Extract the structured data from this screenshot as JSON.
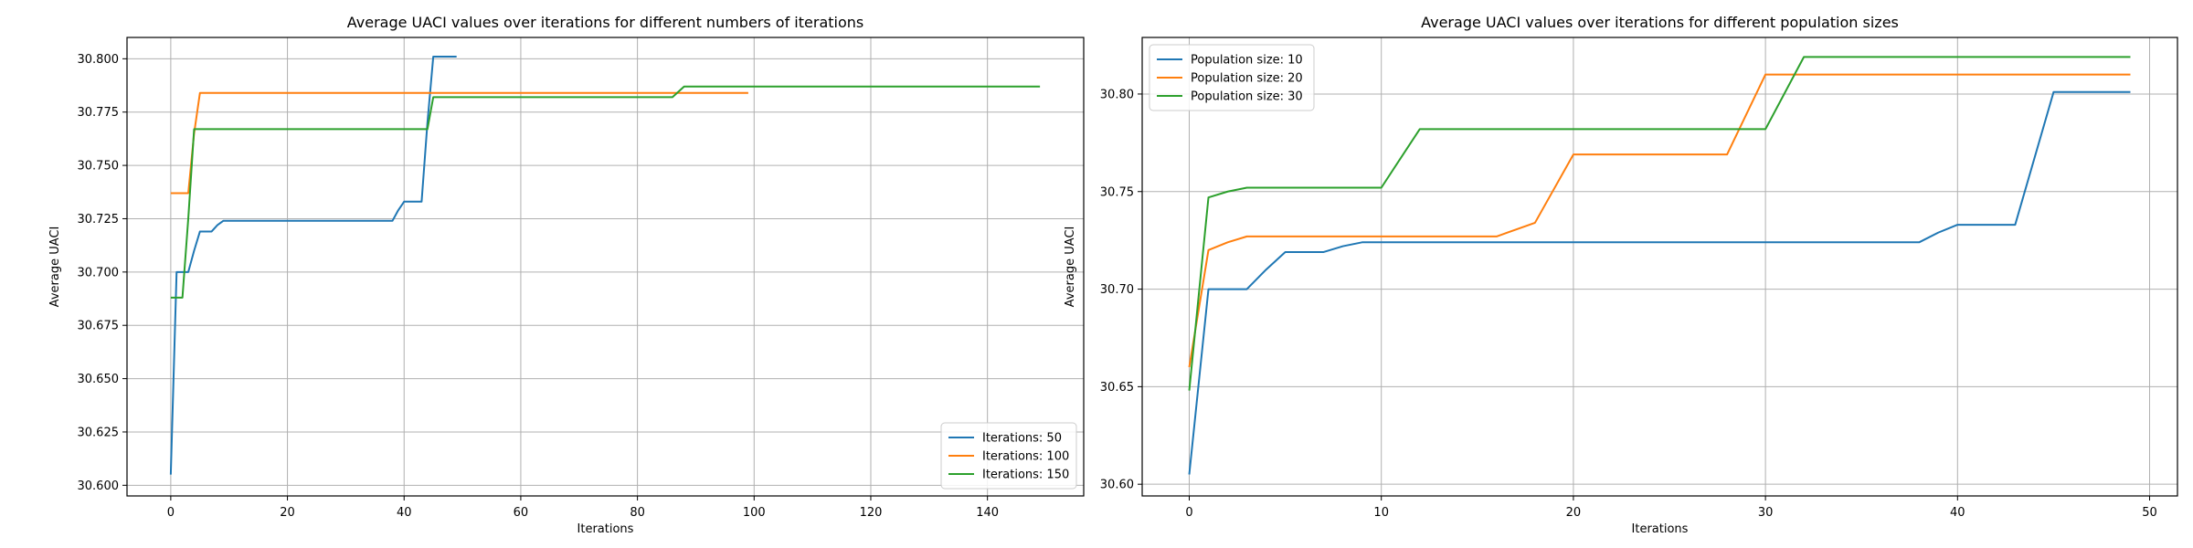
{
  "chart_data": [
    {
      "type": "line",
      "title": "Average UACI values over iterations for different numbers of iterations",
      "xlabel": "Iterations",
      "ylabel": "Average UACI",
      "xlim": [
        -7.5,
        156.5
      ],
      "ylim": [
        30.595,
        30.81
      ],
      "x_ticks": [
        0,
        20,
        40,
        60,
        80,
        100,
        120,
        140
      ],
      "y_ticks": [
        30.6,
        30.625,
        30.65,
        30.675,
        30.7,
        30.725,
        30.75,
        30.775,
        30.8
      ],
      "y_tick_decimals": 3,
      "grid": true,
      "legend_position": "lower right",
      "series": [
        {
          "name": "Iterations: 50",
          "color": "#1f77b4",
          "x": [
            0,
            1,
            2,
            3,
            4,
            5,
            6,
            7,
            8,
            9,
            38,
            39,
            40,
            43,
            44,
            45,
            49
          ],
          "y": [
            30.605,
            30.7,
            30.7,
            30.7,
            30.71,
            30.719,
            30.719,
            30.719,
            30.722,
            30.724,
            30.724,
            30.729,
            30.733,
            30.733,
            30.77,
            30.801,
            30.801
          ]
        },
        {
          "name": "Iterations: 100",
          "color": "#ff7f0e",
          "x": [
            0,
            1,
            2,
            3,
            4,
            5,
            99
          ],
          "y": [
            30.737,
            30.737,
            30.737,
            30.737,
            30.765,
            30.784,
            30.784
          ]
        },
        {
          "name": "Iterations: 150",
          "color": "#2ca02c",
          "x": [
            0,
            1,
            2,
            3,
            4,
            44,
            45,
            86,
            88,
            149
          ],
          "y": [
            30.688,
            30.688,
            30.688,
            30.725,
            30.767,
            30.767,
            30.782,
            30.782,
            30.787,
            30.787
          ]
        }
      ]
    },
    {
      "type": "line",
      "title": "Average UACI values over iterations for different population sizes",
      "xlabel": "Iterations",
      "ylabel": "Average UACI",
      "xlim": [
        -2.45,
        51.45
      ],
      "ylim": [
        30.594,
        30.829
      ],
      "x_ticks": [
        0,
        10,
        20,
        30,
        40,
        50
      ],
      "y_ticks": [
        30.6,
        30.65,
        30.7,
        30.75,
        30.8
      ],
      "y_tick_decimals": 2,
      "grid": true,
      "legend_position": "upper left",
      "series": [
        {
          "name": "Population size: 10",
          "color": "#1f77b4",
          "x": [
            0,
            1,
            2,
            3,
            4,
            5,
            6,
            7,
            8,
            9,
            38,
            39,
            40,
            43,
            45,
            49
          ],
          "y": [
            30.605,
            30.7,
            30.7,
            30.7,
            30.71,
            30.719,
            30.719,
            30.719,
            30.722,
            30.724,
            30.724,
            30.729,
            30.733,
            30.733,
            30.801,
            30.801
          ]
        },
        {
          "name": "Population size: 20",
          "color": "#ff7f0e",
          "x": [
            0,
            1,
            2,
            3,
            16,
            18,
            20,
            28,
            30,
            49
          ],
          "y": [
            30.66,
            30.72,
            30.724,
            30.727,
            30.727,
            30.734,
            30.769,
            30.769,
            30.81,
            30.81
          ]
        },
        {
          "name": "Population size: 30",
          "color": "#2ca02c",
          "x": [
            0,
            1,
            2,
            3,
            10,
            12,
            30,
            32,
            49
          ],
          "y": [
            30.648,
            30.747,
            30.75,
            30.752,
            30.752,
            30.782,
            30.782,
            30.819,
            30.819
          ]
        }
      ]
    }
  ]
}
